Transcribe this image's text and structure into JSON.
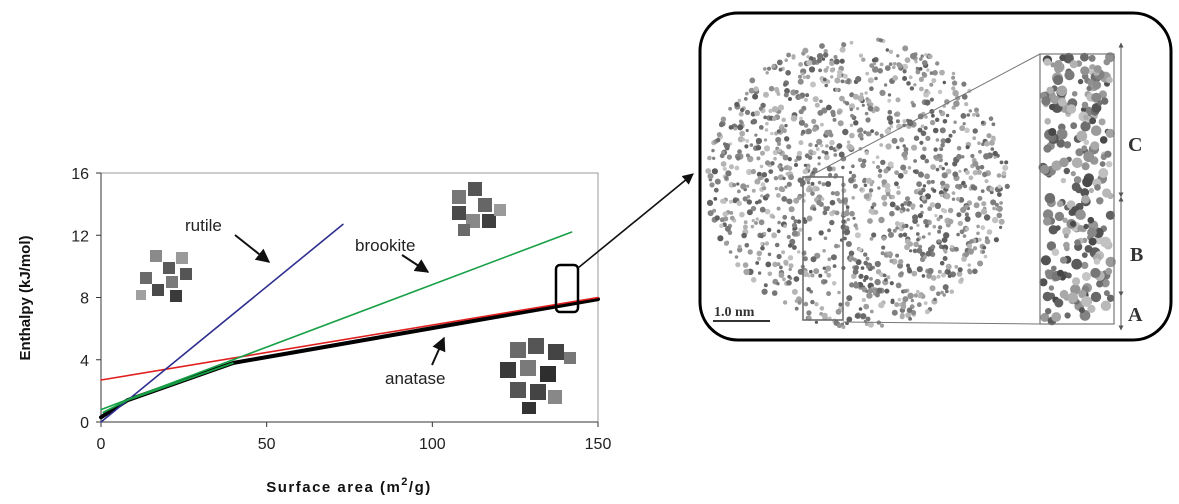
{
  "chart_data": {
    "type": "line",
    "xlabel": "Surface area (m²/g)",
    "xlabel_parts": {
      "main": "Surface area (m",
      "sup": "2",
      "tail": "/g)"
    },
    "ylabel": "Enthalpy (kJ/mol)",
    "xlim": [
      0,
      150
    ],
    "ylim": [
      0,
      16
    ],
    "x_ticks": [
      0,
      50,
      100,
      150
    ],
    "y_ticks": [
      0,
      4,
      8,
      12,
      16
    ],
    "x_tick_labels": [
      "0",
      "50",
      "100",
      "150"
    ],
    "y_tick_labels": [
      "0",
      "4",
      "8",
      "12",
      "16"
    ],
    "grid": false,
    "series": [
      {
        "name": "rutile",
        "color": "#2e2e8f",
        "points": [
          [
            0,
            0
          ],
          [
            73,
            12.7
          ]
        ]
      },
      {
        "name": "brookite",
        "color": "#17a045",
        "points": [
          [
            0,
            0.8
          ],
          [
            142,
            12.2
          ]
        ]
      },
      {
        "name": "anatase",
        "color": "#000000",
        "points": [
          [
            0,
            0.3
          ],
          [
            8,
            1.4
          ],
          [
            40,
            3.8
          ],
          [
            150,
            7.9
          ]
        ]
      },
      {
        "name": "",
        "color": "#e02020",
        "points": [
          [
            0,
            2.7
          ],
          [
            150,
            8.0
          ]
        ]
      }
    ],
    "labels": {
      "rutile": "rutile",
      "brookite": "brookite",
      "anatase": "anatase"
    }
  },
  "inset": {
    "scale_bar": "1.0 nm",
    "regions": [
      "C",
      "B",
      "A"
    ]
  }
}
